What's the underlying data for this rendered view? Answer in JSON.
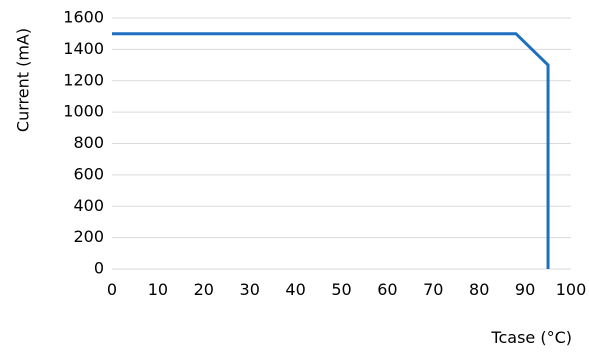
{
  "chart_data": {
    "type": "line",
    "xlabel": "Tcase (°C)",
    "ylabel": "Current (mA)",
    "xlim": [
      0,
      100
    ],
    "ylim": [
      0,
      1600
    ],
    "x_ticks": [
      0,
      10,
      20,
      30,
      40,
      50,
      60,
      70,
      80,
      90,
      100
    ],
    "y_ticks": [
      0,
      200,
      400,
      600,
      800,
      1000,
      1200,
      1400,
      1600
    ],
    "grid": "horizontal",
    "legend": "none",
    "series": [
      {
        "color": "#1f6fbf",
        "points": [
          {
            "x": 0,
            "y": 1500
          },
          {
            "x": 88,
            "y": 1500
          },
          {
            "x": 95,
            "y": 1300
          },
          {
            "x": 95,
            "y": 0
          }
        ]
      }
    ]
  }
}
